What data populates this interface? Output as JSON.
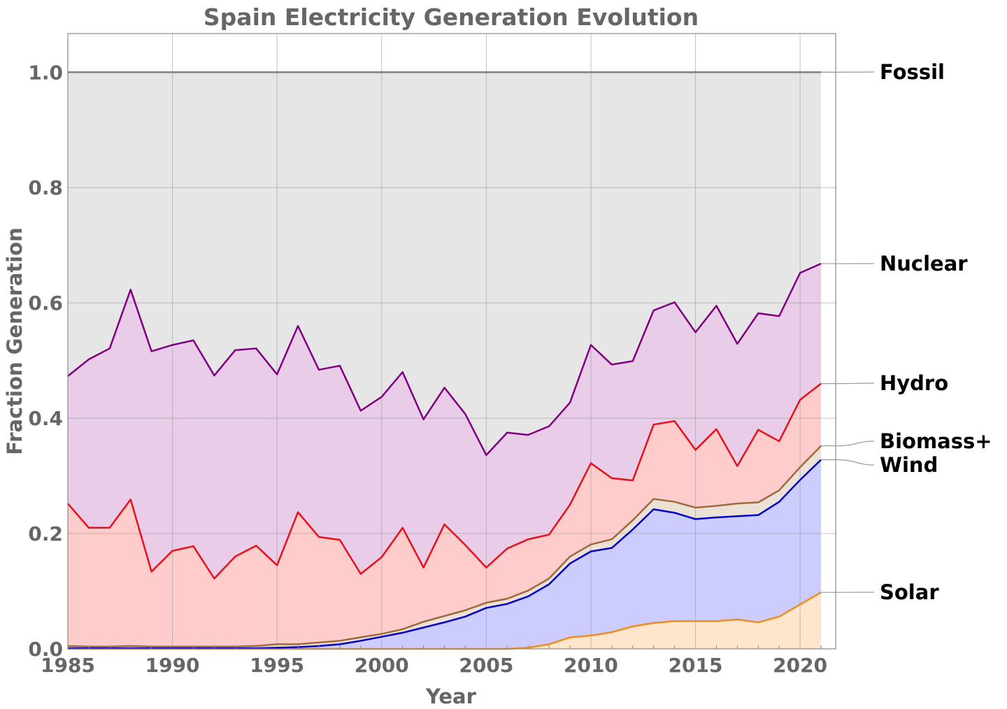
{
  "chart_data": {
    "type": "area",
    "stacked": true,
    "title": "Spain Electricity Generation Evolution",
    "xlabel": "Year",
    "ylabel": "Fraction Generation",
    "xlim": [
      1985,
      2021.7
    ],
    "ylim": [
      0,
      1.067
    ],
    "grid": true,
    "xticks": [
      1985,
      1990,
      1995,
      2000,
      2005,
      2010,
      2015,
      2020
    ],
    "yticks": [
      "0.0",
      "0.2",
      "0.4",
      "0.6",
      "0.8",
      "1.0"
    ],
    "legend": "right (line labels)",
    "x": [
      1985,
      1986,
      1987,
      1988,
      1989,
      1990,
      1991,
      1992,
      1993,
      1994,
      1995,
      1996,
      1997,
      1998,
      1999,
      2000,
      2001,
      2002,
      2003,
      2004,
      2005,
      2006,
      2007,
      2008,
      2009,
      2010,
      2011,
      2012,
      2013,
      2014,
      2015,
      2016,
      2017,
      2018,
      2019,
      2020,
      2021
    ],
    "series_cumulative": [
      {
        "name": "Solar",
        "line": "#f08c1e",
        "fill": "#ffe5cc",
        "values": [
          0,
          0,
          0,
          0,
          0,
          0,
          0,
          0,
          0,
          0,
          0,
          0,
          0,
          0,
          0,
          0,
          0,
          0,
          0,
          0,
          0,
          0,
          0.002,
          0.008,
          0.02,
          0.023,
          0.029,
          0.039,
          0.045,
          0.048,
          0.048,
          0.048,
          0.051,
          0.046,
          0.056,
          0.077,
          0.098
        ]
      },
      {
        "name": "Wind",
        "line": "#0000cc",
        "fill": "#ccccff",
        "values": [
          0.001,
          0.001,
          0.001,
          0.001,
          0.001,
          0.001,
          0.001,
          0.001,
          0.001,
          0.001,
          0.002,
          0.003,
          0.005,
          0.008,
          0.014,
          0.021,
          0.028,
          0.037,
          0.046,
          0.056,
          0.071,
          0.078,
          0.091,
          0.112,
          0.148,
          0.169,
          0.175,
          0.207,
          0.242,
          0.236,
          0.225,
          0.228,
          0.23,
          0.232,
          0.255,
          0.293,
          0.328
        ]
      },
      {
        "name": "Biomass+",
        "line": "#9c6a3c",
        "fill": "#ebe1d7",
        "values": [
          0.005,
          0.004,
          0.004,
          0.005,
          0.004,
          0.004,
          0.004,
          0.004,
          0.004,
          0.005,
          0.008,
          0.008,
          0.011,
          0.014,
          0.02,
          0.026,
          0.034,
          0.047,
          0.057,
          0.067,
          0.08,
          0.087,
          0.101,
          0.122,
          0.16,
          0.181,
          0.19,
          0.223,
          0.26,
          0.255,
          0.245,
          0.248,
          0.252,
          0.254,
          0.275,
          0.315,
          0.352
        ]
      },
      {
        "name": "Hydro",
        "line": "#e8101a",
        "fill": "#ffcccc",
        "values": [
          0.252,
          0.21,
          0.21,
          0.259,
          0.134,
          0.17,
          0.178,
          0.122,
          0.16,
          0.179,
          0.145,
          0.237,
          0.194,
          0.189,
          0.13,
          0.159,
          0.21,
          0.141,
          0.216,
          0.18,
          0.141,
          0.174,
          0.19,
          0.198,
          0.25,
          0.322,
          0.296,
          0.292,
          0.389,
          0.395,
          0.345,
          0.381,
          0.317,
          0.38,
          0.36,
          0.432,
          0.46
        ]
      },
      {
        "name": "Nuclear",
        "line": "#800080",
        "fill": "#e8cce8",
        "values": [
          0.473,
          0.502,
          0.521,
          0.623,
          0.516,
          0.527,
          0.535,
          0.474,
          0.518,
          0.521,
          0.476,
          0.56,
          0.484,
          0.491,
          0.413,
          0.437,
          0.48,
          0.398,
          0.453,
          0.407,
          0.336,
          0.375,
          0.371,
          0.386,
          0.427,
          0.527,
          0.493,
          0.499,
          0.587,
          0.601,
          0.549,
          0.595,
          0.529,
          0.582,
          0.577,
          0.652,
          0.668
        ]
      },
      {
        "name": "Fossil",
        "line": "#808080",
        "fill": "#e6e6e6",
        "values": [
          1,
          1,
          1,
          1,
          1,
          1,
          1,
          1,
          1,
          1,
          1,
          1,
          1,
          1,
          1,
          1,
          1,
          1,
          1,
          1,
          1,
          1,
          1,
          1,
          1,
          1,
          1,
          1,
          1,
          1,
          1,
          1,
          1,
          1,
          1,
          1,
          1
        ]
      }
    ]
  }
}
